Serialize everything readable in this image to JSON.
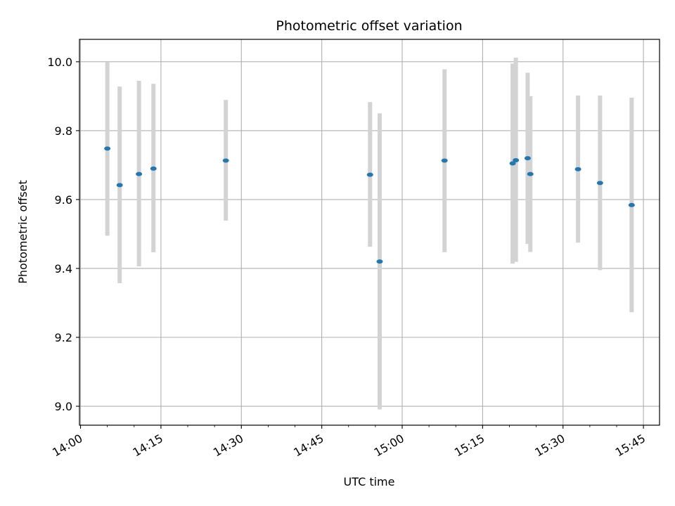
{
  "chart_data": {
    "type": "scatter",
    "title": "Photometric offset variation",
    "xlabel": "UTC time",
    "ylabel": "Photometric offset",
    "x_tick_labels": [
      "14:00",
      "14:15",
      "14:30",
      "14:45",
      "15:00",
      "15:15",
      "15:30",
      "15:45"
    ],
    "y_tick_labels": [
      "9.0",
      "9.2",
      "9.4",
      "9.6",
      "9.8",
      "10.0"
    ],
    "xlim": [
      "13:59.8",
      "15:48.0"
    ],
    "ylim": [
      8.945,
      10.065
    ],
    "grid": true,
    "marker_color": "#1f77b4",
    "errorbar_color": "#d3d3d3",
    "series": [
      {
        "points": [
          {
            "x": "14:05.0",
            "y": 9.748,
            "ylow": 9.495,
            "yhigh": 10.0
          },
          {
            "x": "14:07.3",
            "y": 9.642,
            "ylow": 9.357,
            "yhigh": 9.928
          },
          {
            "x": "14:10.9",
            "y": 9.674,
            "ylow": 9.406,
            "yhigh": 9.945
          },
          {
            "x": "14:13.6",
            "y": 9.69,
            "ylow": 9.447,
            "yhigh": 9.936
          },
          {
            "x": "14:27.1",
            "y": 9.713,
            "ylow": 9.539,
            "yhigh": 9.889
          },
          {
            "x": "14:54.0",
            "y": 9.672,
            "ylow": 9.463,
            "yhigh": 9.883
          },
          {
            "x": "14:55.8",
            "y": 9.42,
            "ylow": 8.991,
            "yhigh": 9.85
          },
          {
            "x": "15:07.9",
            "y": 9.713,
            "ylow": 9.447,
            "yhigh": 9.978
          },
          {
            "x": "15:20.6",
            "y": 9.705,
            "ylow": 9.414,
            "yhigh": 9.995
          },
          {
            "x": "15:21.2",
            "y": 9.714,
            "ylow": 9.419,
            "yhigh": 10.012
          },
          {
            "x": "15:23.4",
            "y": 9.72,
            "ylow": 9.471,
            "yhigh": 9.968
          },
          {
            "x": "15:23.9",
            "y": 9.674,
            "ylow": 9.448,
            "yhigh": 9.9
          },
          {
            "x": "15:32.8",
            "y": 9.688,
            "ylow": 9.475,
            "yhigh": 9.902
          },
          {
            "x": "15:36.9",
            "y": 9.648,
            "ylow": 9.395,
            "yhigh": 9.902
          },
          {
            "x": "15:42.8",
            "y": 9.584,
            "ylow": 9.273,
            "yhigh": 9.896
          }
        ]
      }
    ]
  }
}
